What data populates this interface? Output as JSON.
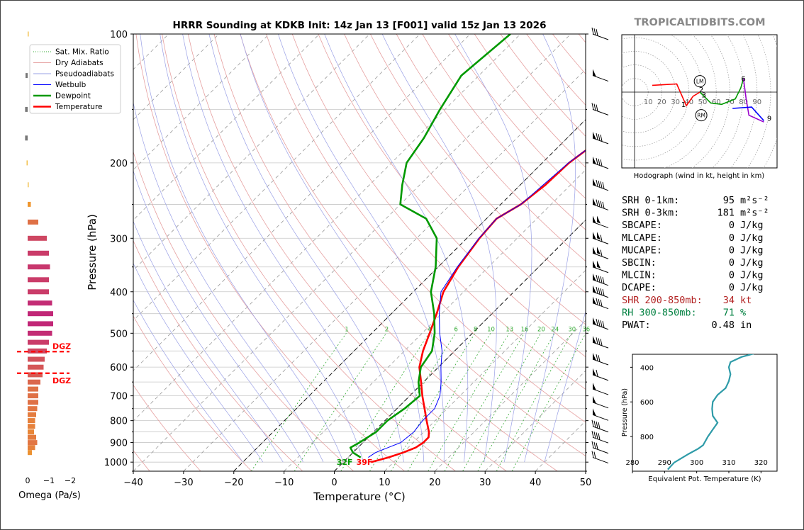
{
  "chart_data": [
    {
      "type": "line",
      "panel": "skew-t",
      "title": "HRRR Sounding at KDKB Init: 14z Jan 13 [F001] valid 15z Jan 13 2026",
      "xlabel": "Temperature (°C)",
      "ylabel": "Pressure (hPa)",
      "xlim": [
        -40,
        50
      ],
      "ylim": [
        1050,
        100
      ],
      "y_scale": "log",
      "x_ticks": [
        "−40",
        "−30",
        "−20",
        "−10",
        "0",
        "10",
        "20",
        "30",
        "40",
        "50"
      ],
      "y_ticks": [
        "100",
        "200",
        "300",
        "400",
        "500",
        "600",
        "700",
        "800",
        "900",
        "1000"
      ],
      "legend_position": "top-left",
      "legend": [
        "Sat. Mix. Ratio",
        "Dry Adiabats",
        "Pseudoadiabats",
        "Wetbulb",
        "Dewpoint",
        "Temperature"
      ],
      "mixing_ratio_labels": [
        "1",
        "2",
        "4",
        "6",
        "8",
        "10",
        "13",
        "16",
        "20",
        "24",
        "30",
        "36"
      ],
      "surface_labels": {
        "dewpoint": "32F",
        "temperature": "39F"
      },
      "series": [
        {
          "name": "Temperature",
          "color": "#ff0000",
          "points": [
            [
              1000,
              5.5
            ],
            [
              975,
              8.0
            ],
            [
              950,
              10.0
            ],
            [
              925,
              11.5
            ],
            [
              900,
              12.0
            ],
            [
              875,
              12.0
            ],
            [
              850,
              11.0
            ],
            [
              800,
              8.3
            ],
            [
              750,
              5.5
            ],
            [
              700,
              2.5
            ],
            [
              650,
              -0.5
            ],
            [
              600,
              -3.8
            ],
            [
              550,
              -6.3
            ],
            [
              500,
              -8.5
            ],
            [
              450,
              -11.0
            ],
            [
              400,
              -14.0
            ],
            [
              350,
              -16.0
            ],
            [
              300,
              -17.5
            ],
            [
              270,
              -18.0
            ],
            [
              250,
              -16.0
            ],
            [
              225,
              -15.0
            ],
            [
              200,
              -14.7
            ],
            [
              175,
              -13.0
            ],
            [
              150,
              -12.0
            ],
            [
              125,
              -12.0
            ],
            [
              110,
              -11.5
            ],
            [
              100,
              -11.0
            ]
          ]
        },
        {
          "name": "Dewpoint",
          "color": "#009900",
          "points": [
            [
              975,
              2.5
            ],
            [
              950,
              0.0
            ],
            [
              925,
              -1.5
            ],
            [
              900,
              -0.7
            ],
            [
              850,
              0.5
            ],
            [
              800,
              0.5
            ],
            [
              750,
              1.5
            ],
            [
              700,
              2.0
            ],
            [
              650,
              -1.0
            ],
            [
              600,
              -3.5
            ],
            [
              550,
              -4.5
            ],
            [
              500,
              -7.5
            ],
            [
              450,
              -11.5
            ],
            [
              400,
              -16.5
            ],
            [
              350,
              -20.5
            ],
            [
              300,
              -26.0
            ],
            [
              270,
              -32.0
            ],
            [
              250,
              -40.0
            ],
            [
              225,
              -43.5
            ],
            [
              200,
              -47.0
            ],
            [
              175,
              -48.5
            ],
            [
              150,
              -51.0
            ],
            [
              125,
              -53.5
            ],
            [
              100,
              -52.0
            ]
          ]
        },
        {
          "name": "Wetbulb",
          "color": "#0000ff",
          "points": [
            [
              975,
              4.0
            ],
            [
              950,
              4.5
            ],
            [
              925,
              6.0
            ],
            [
              900,
              7.5
            ],
            [
              850,
              8.0
            ],
            [
              800,
              7.5
            ],
            [
              750,
              7.5
            ],
            [
              700,
              6.0
            ],
            [
              650,
              3.5
            ],
            [
              600,
              0.5
            ],
            [
              550,
              -2.5
            ],
            [
              500,
              -6.5
            ],
            [
              450,
              -10.5
            ],
            [
              400,
              -14.5
            ],
            [
              350,
              -16.2
            ],
            [
              300,
              -17.6
            ],
            [
              270,
              -18.0
            ],
            [
              250,
              -16.0
            ],
            [
              200,
              -14.8
            ],
            [
              175,
              -13.0
            ],
            [
              150,
              -12.0
            ],
            [
              125,
              -12.0
            ],
            [
              100,
              -11.0
            ]
          ]
        }
      ]
    },
    {
      "type": "bar",
      "panel": "omega",
      "xlabel": "Omega (Pa/s)",
      "x_ticks": [
        "0",
        "−1",
        "−2"
      ],
      "annotations": [
        "DGZ",
        "DGZ"
      ],
      "dgz_pressures": [
        552,
        620
      ],
      "bars": [
        {
          "p": 100,
          "v": -0.05
        },
        {
          "p": 125,
          "v": 0.1
        },
        {
          "p": 150,
          "v": 0.12
        },
        {
          "p": 175,
          "v": 0.12
        },
        {
          "p": 200,
          "v": 0.05
        },
        {
          "p": 225,
          "v": -0.05
        },
        {
          "p": 250,
          "v": -0.15
        },
        {
          "p": 275,
          "v": -0.5
        },
        {
          "p": 300,
          "v": -0.9
        },
        {
          "p": 325,
          "v": -1.0
        },
        {
          "p": 350,
          "v": -1.05
        },
        {
          "p": 375,
          "v": -1.0
        },
        {
          "p": 400,
          "v": -1.0
        },
        {
          "p": 425,
          "v": -1.15
        },
        {
          "p": 450,
          "v": -1.2
        },
        {
          "p": 475,
          "v": -1.2
        },
        {
          "p": 500,
          "v": -1.15
        },
        {
          "p": 525,
          "v": -1.0
        },
        {
          "p": 550,
          "v": -0.9
        },
        {
          "p": 575,
          "v": -0.8
        },
        {
          "p": 600,
          "v": -0.75
        },
        {
          "p": 625,
          "v": -0.7
        },
        {
          "p": 650,
          "v": -0.6
        },
        {
          "p": 675,
          "v": -0.5
        },
        {
          "p": 700,
          "v": -0.5
        },
        {
          "p": 725,
          "v": -0.5
        },
        {
          "p": 750,
          "v": -0.45
        },
        {
          "p": 775,
          "v": -0.4
        },
        {
          "p": 800,
          "v": -0.35
        },
        {
          "p": 825,
          "v": -0.35
        },
        {
          "p": 850,
          "v": -0.3
        },
        {
          "p": 875,
          "v": -0.4
        },
        {
          "p": 900,
          "v": -0.45
        },
        {
          "p": 925,
          "v": -0.35
        },
        {
          "p": 950,
          "v": -0.2
        }
      ]
    },
    {
      "type": "line",
      "panel": "hodograph",
      "caption": "Hodograph (wind in kt, height in km)",
      "ring_labels": [
        "10",
        "20",
        "30",
        "40",
        "50",
        "60",
        "70",
        "80",
        "90"
      ],
      "markers": [
        "LM",
        "RM"
      ],
      "height_labels": [
        "1",
        "2",
        "3",
        "6",
        "9"
      ],
      "segments": [
        {
          "color": "#ff0000",
          "points": [
            [
              13,
              5
            ],
            [
              31,
              6
            ],
            [
              38,
              -10
            ],
            [
              43,
              -3
            ],
            [
              48,
              0
            ]
          ]
        },
        {
          "color": "#009900",
          "points": [
            [
              48,
              0
            ],
            [
              56,
              -8
            ],
            [
              64,
              -9
            ],
            [
              74,
              -5
            ],
            [
              78,
              3
            ],
            [
              80,
              10
            ]
          ]
        },
        {
          "color": "#9900cc",
          "points": [
            [
              80,
              10
            ],
            [
              82,
              -5
            ],
            [
              84,
              -17
            ],
            [
              95,
              -22
            ]
          ]
        },
        {
          "color": "#0000ff",
          "points": [
            [
              72,
              -12
            ],
            [
              86,
              -11
            ],
            [
              95,
              -21
            ]
          ]
        }
      ]
    },
    {
      "type": "line",
      "panel": "theta-e",
      "xlabel": "Equivalent Pot. Temperature (K)",
      "ylabel": "Pressure (hPa)",
      "xlim": [
        280,
        325
      ],
      "x_ticks": [
        "280",
        "290",
        "300",
        "310",
        "320"
      ],
      "y_ticks": [
        "400",
        "600",
        "800"
      ],
      "color": "#2e9ba8",
      "points": [
        [
          990,
          291
        ],
        [
          950,
          293
        ],
        [
          900,
          297.5
        ],
        [
          870,
          300.5
        ],
        [
          850,
          302
        ],
        [
          800,
          303.5
        ],
        [
          760,
          305
        ],
        [
          720,
          306.5
        ],
        [
          680,
          305
        ],
        [
          640,
          304.8
        ],
        [
          600,
          305
        ],
        [
          560,
          306.5
        ],
        [
          520,
          309
        ],
        [
          480,
          310
        ],
        [
          440,
          310.5
        ],
        [
          400,
          310
        ],
        [
          370,
          310.5
        ],
        [
          340,
          314
        ],
        [
          320,
          318
        ]
      ]
    }
  ],
  "parameters": [
    {
      "label": "SRH 0-1km:",
      "value": "95",
      "unit": "m²s⁻²",
      "color": "#000000"
    },
    {
      "label": "SRH 0-3km:",
      "value": "181",
      "unit": "m²s⁻²",
      "color": "#000000"
    },
    {
      "label": "SBCAPE:",
      "value": "0",
      "unit": "J/kg",
      "color": "#000000"
    },
    {
      "label": "MLCAPE:",
      "value": "0",
      "unit": "J/kg",
      "color": "#000000"
    },
    {
      "label": "MUCAPE:",
      "value": "0",
      "unit": "J/kg",
      "color": "#000000"
    },
    {
      "label": "SBCIN:",
      "value": "0",
      "unit": "J/kg",
      "color": "#000000"
    },
    {
      "label": "MLCIN:",
      "value": "0",
      "unit": "J/kg",
      "color": "#000000"
    },
    {
      "label": "DCAPE:",
      "value": "0",
      "unit": "J/kg",
      "color": "#000000"
    },
    {
      "label": "SHR 200-850mb:",
      "value": "34",
      "unit": "kt",
      "color": "#b22222"
    },
    {
      "label": "RH 300-850mb:",
      "value": "71",
      "unit": "%",
      "color": "#008040"
    },
    {
      "label": "PWAT:",
      "value": "0.48",
      "unit": "in",
      "color": "#000000"
    }
  ],
  "branding": "TROPICALTIDBITS.COM",
  "wind_barbs": [
    {
      "p": 100,
      "flags": 0,
      "barbs": 3
    },
    {
      "p": 125,
      "flags": 1,
      "barbs": 0
    },
    {
      "p": 150,
      "flags": 0,
      "barbs": 3
    },
    {
      "p": 175,
      "flags": 1,
      "barbs": 3
    },
    {
      "p": 200,
      "flags": 1,
      "barbs": 3
    },
    {
      "p": 225,
      "flags": 1,
      "barbs": 4
    },
    {
      "p": 250,
      "flags": 1,
      "barbs": 4
    },
    {
      "p": 275,
      "flags": 2,
      "barbs": 0
    },
    {
      "p": 300,
      "flags": 2,
      "barbs": 1
    },
    {
      "p": 325,
      "flags": 2,
      "barbs": 1
    },
    {
      "p": 350,
      "flags": 2,
      "barbs": 0
    },
    {
      "p": 375,
      "flags": 1,
      "barbs": 4
    },
    {
      "p": 400,
      "flags": 1,
      "barbs": 4
    },
    {
      "p": 425,
      "flags": 1,
      "barbs": 3
    },
    {
      "p": 475,
      "flags": 1,
      "barbs": 4
    },
    {
      "p": 525,
      "flags": 1,
      "barbs": 3
    },
    {
      "p": 575,
      "flags": 1,
      "barbs": 2
    },
    {
      "p": 625,
      "flags": 1,
      "barbs": 1
    },
    {
      "p": 675,
      "flags": 1,
      "barbs": 0
    },
    {
      "p": 725,
      "flags": 1,
      "barbs": 0
    },
    {
      "p": 775,
      "flags": 1,
      "barbs": 0
    },
    {
      "p": 825,
      "flags": 0,
      "barbs": 4
    },
    {
      "p": 875,
      "flags": 0,
      "barbs": 4
    },
    {
      "p": 925,
      "flags": 0,
      "barbs": 3
    },
    {
      "p": 975,
      "flags": 0,
      "barbs": 2
    }
  ]
}
